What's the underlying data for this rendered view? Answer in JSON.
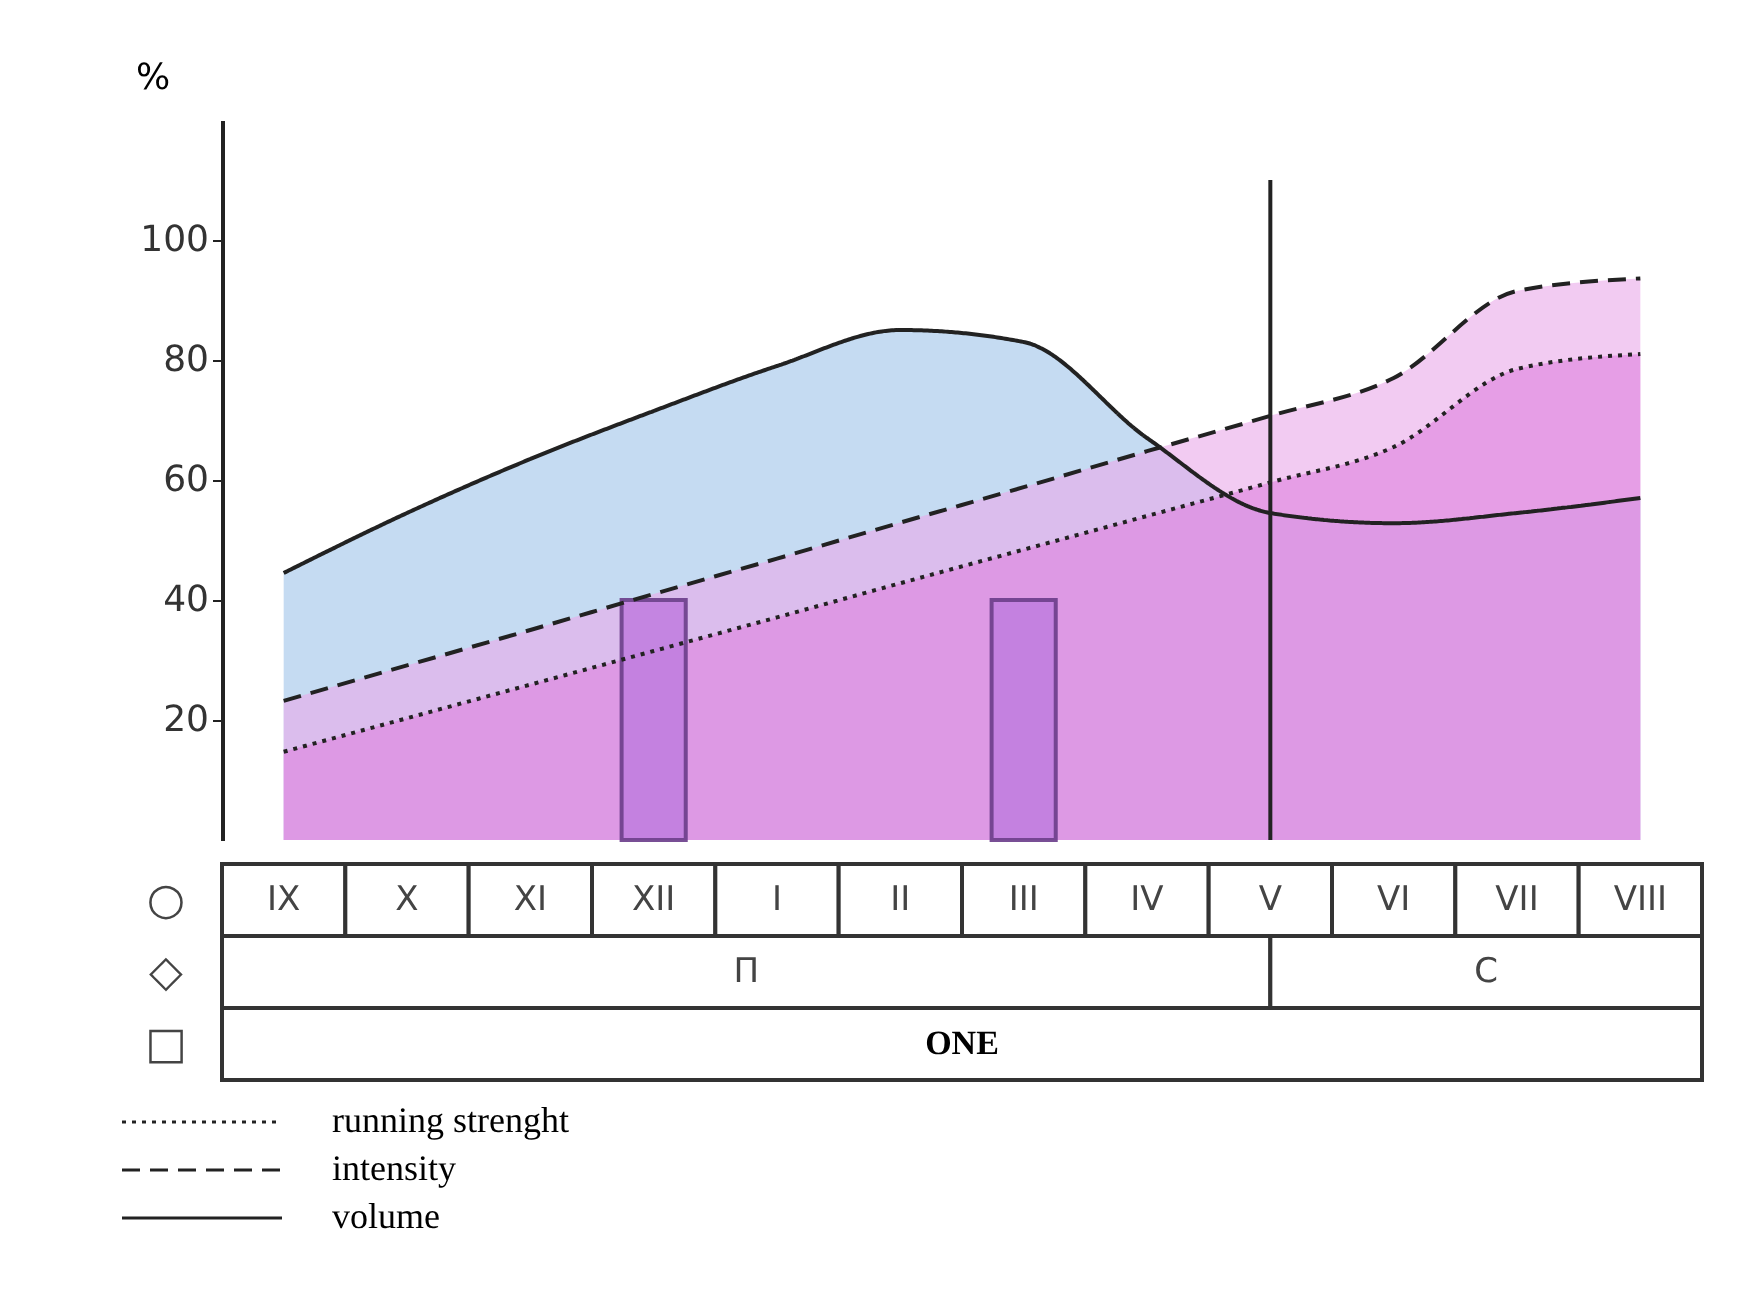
{
  "chart_data": {
    "type": "area",
    "ylabel": "%",
    "ylim": [
      0,
      120
    ],
    "yticks": [
      20,
      40,
      60,
      80,
      100
    ],
    "categories": [
      "IX",
      "X",
      "XI",
      "XII",
      "I",
      "II",
      "III",
      "IV",
      "V",
      "VI",
      "VII",
      "VIII"
    ],
    "legend": "bottom left",
    "series": [
      {
        "name": "volume",
        "line_style": "solid",
        "color": "#9fc3ea",
        "values": [
          44.5,
          54.5,
          63.5,
          71.5,
          79,
          85,
          83,
          67,
          54.5,
          52.8,
          54.5,
          57
        ]
      },
      {
        "name": "intensity",
        "line_style": "dashed",
        "color": "#eaa8ea",
        "values": [
          23.2,
          29.1,
          35,
          41,
          46.9,
          52.9,
          58.8,
          64.8,
          70.7,
          77,
          91.5,
          93.6
        ]
      },
      {
        "name": "running strenght",
        "line_style": "dotted",
        "color": "#dd80dd",
        "values": [
          14.7,
          20.3,
          25.9,
          31.5,
          37.1,
          42.8,
          48.4,
          54,
          59.6,
          65.5,
          78.5,
          81
        ]
      },
      {
        "type": "bar",
        "color": "#c27fe0",
        "values": [
          null,
          null,
          null,
          40,
          null,
          null,
          40,
          null,
          null,
          null,
          null,
          null
        ]
      }
    ],
    "ref_lines": [
      {
        "axis": "x",
        "value": "V",
        "color": "#222222"
      }
    ],
    "annotations": [
      "○",
      "◇",
      "□",
      "П",
      "C",
      "ONE"
    ]
  }
}
